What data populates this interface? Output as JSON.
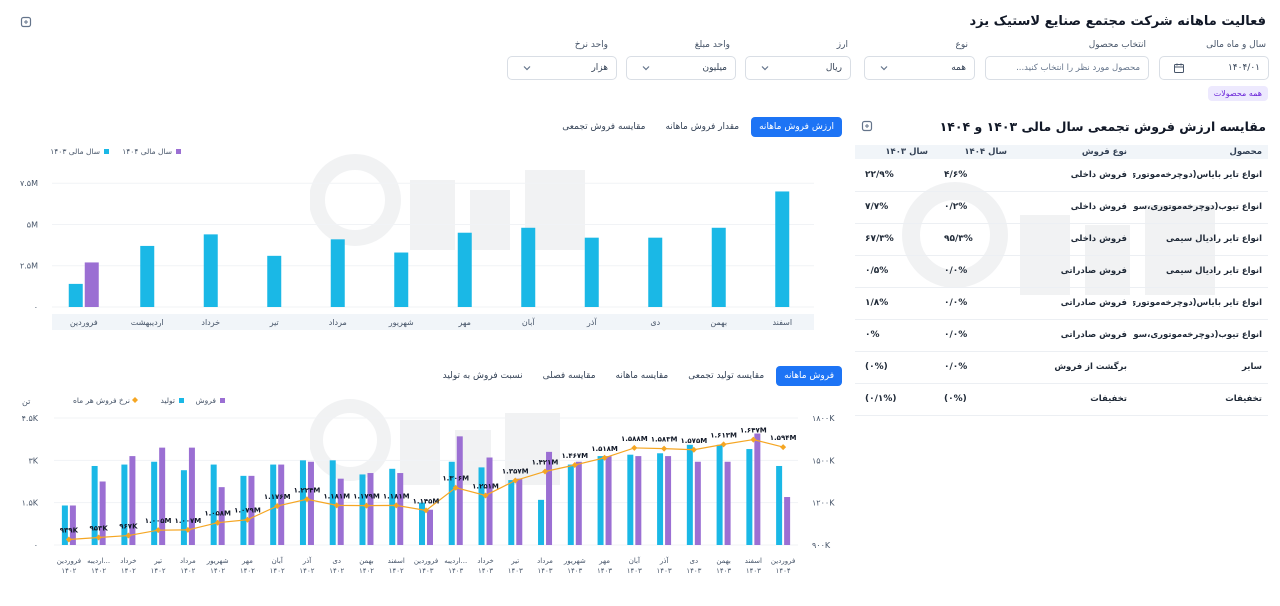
{
  "page": {
    "title": "فعالیت ماهانه شرکت مجتمع صنایع لاستیک یزد"
  },
  "filters": {
    "fiscal": {
      "label": "سال و ماه مالی",
      "value": "۱۴۰۴/۰۱"
    },
    "product": {
      "label": "انتخاب محصول",
      "placeholder": "محصول مورد نظر را انتخاب کنید..."
    },
    "type": {
      "label": "نوع",
      "value": "همه"
    },
    "currency": {
      "label": "ارز",
      "value": "ریال"
    },
    "amount_unit": {
      "label": "واحد مبلغ",
      "value": "میلیون"
    },
    "rate_unit": {
      "label": "واحد نرخ",
      "value": "هزار"
    },
    "chip": "همه محصولات"
  },
  "table_section": {
    "title": "مقایسه ارزش فروش تجمعی سال مالی ۱۴۰۳ و ۱۴۰۴",
    "headers": [
      "محصول",
      "نوع فروش",
      "سال ۱۴۰۴",
      "سال ۱۴۰۳"
    ],
    "rows": [
      [
        "انواع تایر بایاس(دوچرخه‌موتوری،...",
        "فروش داخلی",
        "۴/۶%",
        "۲۲/۹%"
      ],
      [
        "انواع تیوب(دوچرخه‌موتوری،سوار...",
        "فروش داخلی",
        "۰/۲%",
        "۷/۷%"
      ],
      [
        "انواع تایر رادیال سیمی",
        "فروش داخلی",
        "۹۵/۳%",
        "۶۷/۳%"
      ],
      [
        "انواع تایر رادیال سیمی",
        "فروش صادراتی",
        "۰/۰%",
        "۰/۵%"
      ],
      [
        "انواع تایر بایاس(دوچرخه‌موتوری،...",
        "فروش صادراتی",
        "۰/۰%",
        "۱/۸%"
      ],
      [
        "انواع تیوب(دوچرخه‌موتوری،سوار...",
        "فروش صادراتی",
        "۰/۰%",
        "۰%"
      ],
      [
        "سایر",
        "برگشت از فروش",
        "۰/۰%",
        "(۰%)"
      ],
      [
        "تخفیفات",
        "تخفیفات",
        "(۰%)",
        "(۰/۱%)"
      ]
    ]
  },
  "tabs_top": [
    "ارزش فروش ماهانه",
    "مقدار فروش ماهانه",
    "مقایسه فروش تجمعی"
  ],
  "tabs_bottom": [
    "فروش ماهانه",
    "مقایسه تولید تجمعی",
    "مقایسه ماهانه",
    "مقایسه فصلی",
    "نسبت فروش به تولید"
  ],
  "colors": {
    "cyan": "#1ab8e6",
    "purple": "#9b6fd3",
    "orange": "#f5a623",
    "accent": "#1d74f5"
  },
  "chart_data": [
    {
      "type": "bar",
      "legend": [
        "سال مالی ۱۴۰۳",
        "سال مالی ۱۴۰۴"
      ],
      "categories": [
        "اسفند",
        "بهمن",
        "دی",
        "آذر",
        "آبان",
        "مهر",
        "شهریور",
        "مرداد",
        "تیر",
        "خرداد",
        "اردیبهشت",
        "فروردین"
      ],
      "series": [
        {
          "name": "سال مالی ۱۴۰۳",
          "values": [
            7.0,
            4.8,
            4.2,
            4.2,
            4.8,
            4.5,
            3.3,
            4.1,
            3.1,
            4.4,
            3.7,
            1.4
          ]
        },
        {
          "name": "سال مالی ۱۴۰۴",
          "values": [
            null,
            null,
            null,
            null,
            null,
            null,
            null,
            null,
            null,
            null,
            null,
            2.7
          ]
        }
      ],
      "yticks": [
        "۰",
        "۲.۵M",
        "۵M",
        "۷.۵M"
      ],
      "ylim": [
        0,
        8.3
      ]
    },
    {
      "type": "bar",
      "legend": [
        "فروش",
        "تولید",
        "نرخ فروش هر ماه"
      ],
      "left_unit": "تن",
      "left_ticks": [
        "۰",
        "۱.۵K",
        "۳K",
        "۴.۵K"
      ],
      "right_ticks": [
        "۹۰۰K",
        "۱۲۰۰K",
        "۱۵۰۰K",
        "۱۸۰۰K"
      ],
      "categories": [
        [
          "فروردین",
          "۱۴۰۴"
        ],
        [
          "اسفند",
          "۱۴۰۳"
        ],
        [
          "بهمن",
          "۱۴۰۳"
        ],
        [
          "دی",
          "۱۴۰۳"
        ],
        [
          "آذر",
          "۱۴۰۳"
        ],
        [
          "آبان",
          "۱۴۰۳"
        ],
        [
          "مهر",
          "۱۴۰۳"
        ],
        [
          "شهریور",
          "۱۴۰۳"
        ],
        [
          "مرداد",
          "۱۴۰۳"
        ],
        [
          "تیر",
          "۱۴۰۳"
        ],
        [
          "خرداد",
          "۱۴۰۳"
        ],
        [
          "اردیبه...",
          "۱۴۰۳"
        ],
        [
          "فروردین",
          "۱۴۰۳"
        ],
        [
          "اسفند",
          "۱۴۰۲"
        ],
        [
          "بهمن",
          "۱۴۰۲"
        ],
        [
          "دی",
          "۱۴۰۲"
        ],
        [
          "آذر",
          "۱۴۰۲"
        ],
        [
          "آبان",
          "۱۴۰۲"
        ],
        [
          "مهر",
          "۱۴۰۲"
        ],
        [
          "شهریور",
          "۱۴۰۲"
        ],
        [
          "مرداد",
          "۱۴۰۲"
        ],
        [
          "تیر",
          "۱۴۰۲"
        ],
        [
          "خرداد",
          "۱۴۰۲"
        ],
        [
          "اردیبه...",
          "۱۴۰۲"
        ],
        [
          "فروردین",
          "۱۴۰۲"
        ]
      ],
      "series": [
        {
          "name": "فروش",
          "values": [
            1700,
            3950,
            2950,
            2950,
            3150,
            3150,
            3150,
            2950,
            3300,
            2350,
            3100,
            3850,
            1250,
            2550,
            2550,
            2350,
            2950,
            2850,
            2450,
            2050,
            3450,
            3450,
            3150,
            2250,
            1400
          ]
        },
        {
          "name": "تولید",
          "values": [
            2800,
            3400,
            3550,
            3550,
            3250,
            3200,
            3150,
            2850,
            1600,
            2300,
            2750,
            2950,
            1500,
            2700,
            2500,
            3000,
            3000,
            2850,
            2450,
            2850,
            2650,
            2950,
            2850,
            2800,
            1400
          ]
        },
        {
          "name": "نرخ فروش هر ماه",
          "values": [
            1594,
            1647,
            1613,
            1575,
            1583,
            1588,
            1518,
            1467,
            1421,
            1357,
            1251,
            1306,
            1145,
            1181,
            1179,
            1181,
            1224,
            1176,
            1079,
            1058,
            1007,
            1005,
            967,
            953,
            939
          ],
          "labels": [
            "۱.۵۹۴M",
            "۱.۶۴۷M",
            "۱.۶۱۳M",
            "۱.۵۷۵M",
            "۱.۵۸۳M",
            "۱.۵۸۸M",
            "۱.۵۱۸M",
            "۱.۴۶۷M",
            "۱.۴۲۱M",
            "۱.۳۵۷M",
            "۱.۲۵۱M",
            "۱.۳۰۶M",
            "۱.۱۴۵M",
            "۱.۱۸۱M",
            "۱.۱۷۹M",
            "۱.۱۸۱M",
            "۱.۲۲۴M",
            "۱.۱۷۶M",
            "۱.۰۷۹M",
            "۱.۰۵۸M",
            "۱.۰۰۷M",
            "۱.۰۰۵M",
            "۹۶۷K",
            "۹۵۳K",
            "۹۳۹K"
          ]
        }
      ],
      "left_ylim": [
        0,
        4500
      ],
      "right_ylim": [
        900,
        1800
      ]
    }
  ]
}
